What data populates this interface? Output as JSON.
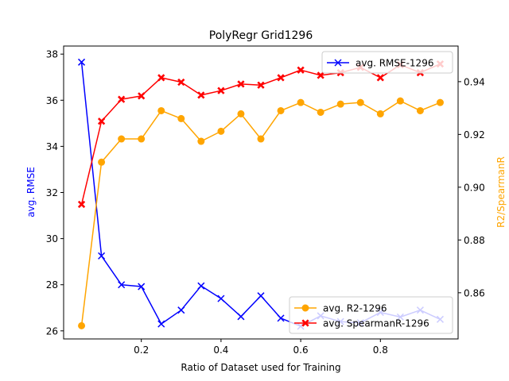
{
  "chart_data": {
    "type": "line",
    "title": "PolyRegr Grid1296",
    "xlabel": "Ratio of Dataset used for Training",
    "ylabel_left": "avg. RMSE",
    "ylabel_right": "R2/SpearmanR",
    "xlim": [
      0.005,
      0.995
    ],
    "ylim_left": [
      25.65,
      38.35
    ],
    "ylim_right": [
      0.8425,
      0.9535
    ],
    "x_ticks": [
      0.2,
      0.4,
      0.6,
      0.8
    ],
    "x_tick_labels": [
      "0.2",
      "0.4",
      "0.6",
      "0.8"
    ],
    "y_left_ticks": [
      26,
      28,
      30,
      32,
      34,
      36,
      38
    ],
    "y_left_tick_labels": [
      "26",
      "28",
      "30",
      "32",
      "34",
      "36",
      "38"
    ],
    "y_right_ticks": [
      0.86,
      0.88,
      0.9,
      0.92,
      0.94
    ],
    "y_right_tick_labels": [
      "0.86",
      "0.88",
      "0.90",
      "0.92",
      "0.94"
    ],
    "x": [
      0.05,
      0.1,
      0.15,
      0.2,
      0.25,
      0.3,
      0.35,
      0.4,
      0.45,
      0.5,
      0.55,
      0.6,
      0.65,
      0.7,
      0.75,
      0.8,
      0.85,
      0.9,
      0.95
    ],
    "series": [
      {
        "name": "avg. RMSE-1296",
        "axis": "left",
        "color": "#0000ff",
        "marker": "x",
        "values": [
          37.65,
          29.25,
          28.0,
          27.92,
          26.3,
          26.9,
          27.95,
          27.4,
          26.62,
          27.52,
          26.55,
          26.2,
          26.65,
          26.4,
          26.35,
          26.8,
          26.6,
          26.9,
          26.5
        ]
      },
      {
        "name": "avg. R2-1296",
        "axis": "right",
        "color": "#ffa500",
        "marker": "o",
        "values": [
          0.8475,
          0.9095,
          0.9183,
          0.9183,
          0.929,
          0.926,
          0.9174,
          0.9212,
          0.9278,
          0.9183,
          0.929,
          0.9321,
          0.9284,
          0.9315,
          0.9321,
          0.9278,
          0.9327,
          0.929,
          0.9321
        ]
      },
      {
        "name": "avg. SpearmanR-1296",
        "axis": "right",
        "color": "#ff0000",
        "marker": "X",
        "values": [
          0.8935,
          0.925,
          0.9333,
          0.9346,
          0.9415,
          0.9398,
          0.9349,
          0.9366,
          0.9391,
          0.9387,
          0.9415,
          0.9444,
          0.9424,
          0.9434,
          0.9454,
          0.9415,
          0.9464,
          0.9434,
          0.9467
        ]
      }
    ],
    "legends": [
      {
        "placement": "upper-right",
        "entries": [
          "avg. RMSE-1296"
        ]
      },
      {
        "placement": "lower-right",
        "entries": [
          "avg. R2-1296",
          "avg. SpearmanR-1296"
        ]
      }
    ],
    "grid": false
  }
}
